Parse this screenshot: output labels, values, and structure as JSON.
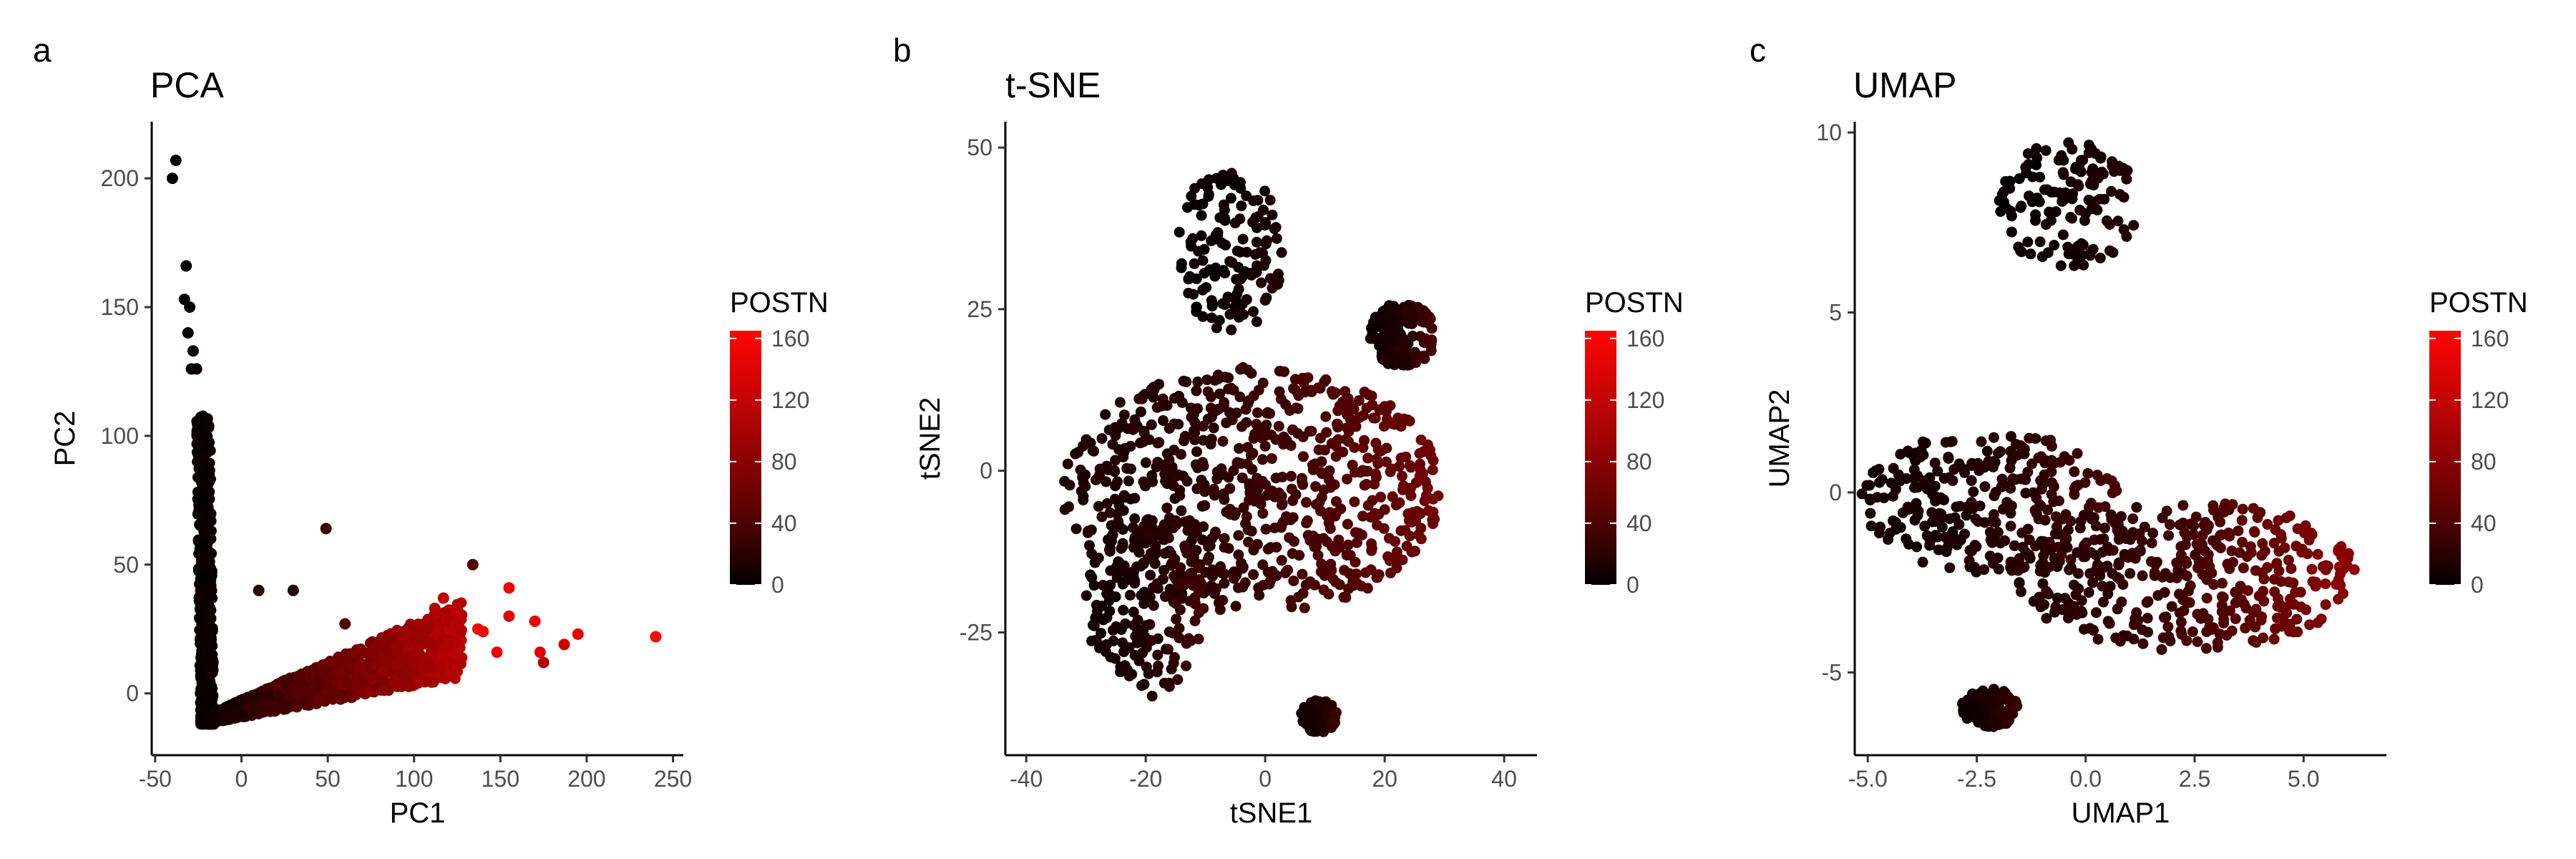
{
  "chart_data": [
    {
      "type": "scatter",
      "panel_label": "a",
      "title": "PCA",
      "xlabel": "PC1",
      "ylabel": "PC2",
      "xlim": [
        -52,
        256
      ],
      "ylim": [
        -24,
        222
      ],
      "xticks": [
        -50,
        0,
        50,
        100,
        150,
        200,
        250
      ],
      "xtick_labels": [
        "-50",
        "0",
        "50",
        "100",
        "150",
        "200",
        "250"
      ],
      "yticks": [
        0,
        50,
        100,
        150,
        200
      ],
      "ytick_labels": [
        "0",
        "50",
        "100",
        "150",
        "200"
      ],
      "grid": false,
      "legend_position": "right",
      "color_by": "POSTN",
      "highlighted_points": [
        {
          "x": -38,
          "y": 207,
          "value": 0
        },
        {
          "x": -40,
          "y": 200,
          "value": 0
        },
        {
          "x": -32,
          "y": 166,
          "value": 0
        },
        {
          "x": -33,
          "y": 153,
          "value": 0
        },
        {
          "x": -30,
          "y": 150,
          "value": 2
        },
        {
          "x": -31,
          "y": 140,
          "value": 2
        },
        {
          "x": -28,
          "y": 133,
          "value": 3
        },
        {
          "x": -29,
          "y": 126,
          "value": 3
        },
        {
          "x": -26,
          "y": 126,
          "value": 4
        },
        {
          "x": 49,
          "y": 64,
          "value": 30
        },
        {
          "x": 134,
          "y": 50,
          "value": 45
        },
        {
          "x": 155,
          "y": 41,
          "value": 150
        },
        {
          "x": 155,
          "y": 30,
          "value": 140
        },
        {
          "x": 170,
          "y": 28,
          "value": 150
        },
        {
          "x": 137,
          "y": 25,
          "value": 160
        },
        {
          "x": 140,
          "y": 24,
          "value": 155
        },
        {
          "x": 195,
          "y": 23,
          "value": 145
        },
        {
          "x": 187,
          "y": 19,
          "value": 130
        },
        {
          "x": 240,
          "y": 22,
          "value": 165
        },
        {
          "x": 175,
          "y": 12,
          "value": 110
        },
        {
          "x": 148,
          "y": 16,
          "value": 150
        },
        {
          "x": 173,
          "y": 16,
          "value": 140
        },
        {
          "x": 112,
          "y": 33,
          "value": 110
        },
        {
          "x": 117,
          "y": 37,
          "value": 120
        },
        {
          "x": 60,
          "y": 27,
          "value": 45
        },
        {
          "x": 10,
          "y": 40,
          "value": 20
        },
        {
          "x": 30,
          "y": 40,
          "value": 15
        }
      ]
    },
    {
      "type": "scatter",
      "panel_label": "b",
      "title": "t-SNE",
      "xlabel": "tSNE1",
      "ylabel": "tSNE2",
      "xlim": [
        -43.5,
        45.5
      ],
      "ylim": [
        -44,
        54
      ],
      "xticks": [
        -40,
        -20,
        0,
        20,
        40
      ],
      "xtick_labels": [
        "-40",
        "-20",
        "0",
        "20",
        "40"
      ],
      "yticks": [
        -25,
        0,
        25,
        50
      ],
      "ytick_labels": [
        "-25",
        "0",
        "25",
        "50"
      ],
      "grid": false,
      "legend_position": "right",
      "color_by": "POSTN",
      "clusters": [
        {
          "shape": "blob",
          "cx": -2,
          "cy": -3,
          "rx": 32,
          "ry": 19,
          "value": 38
        },
        {
          "shape": "blob",
          "cx": -6,
          "cy": 34,
          "rx": 9,
          "ry": 13,
          "value": 8
        },
        {
          "shape": "blob",
          "cx": 23,
          "cy": 21,
          "rx": 5.5,
          "ry": 5,
          "value": 22
        },
        {
          "shape": "blob",
          "cx": -20,
          "cy": -21,
          "rx": 10,
          "ry": 14,
          "value": 20
        },
        {
          "shape": "blob",
          "cx": 9,
          "cy": -38,
          "rx": 3,
          "ry": 2.5,
          "value": 18
        }
      ]
    },
    {
      "type": "scatter",
      "panel_label": "c",
      "title": "UMAP",
      "xlabel": "UMAP1",
      "ylabel": "UMAP2",
      "xlim": [
        -5.3,
        6.9
      ],
      "ylim": [
        -7.3,
        10.3
      ],
      "xticks": [
        -5.0,
        -2.5,
        0.0,
        2.5,
        5.0
      ],
      "xtick_labels": [
        "-5.0",
        "-2.5",
        "0.0",
        "2.5",
        "5.0"
      ],
      "yticks": [
        -5,
        0,
        5,
        10
      ],
      "ytick_labels": [
        "-5",
        "0",
        "5",
        "10"
      ],
      "grid": false,
      "legend_position": "right",
      "color_by": "POSTN",
      "clusters": [
        {
          "shape": "blob",
          "cx": -0.4,
          "cy": 8.0,
          "rx": 1.6,
          "ry": 1.8,
          "value": 10
        },
        {
          "shape": "blob",
          "cx": -2.2,
          "cy": -0.3,
          "rx": 3.0,
          "ry": 2.0,
          "value": 22
        },
        {
          "shape": "blob",
          "cx": 2.3,
          "cy": -2.3,
          "rx": 3.9,
          "ry": 2.1,
          "value": 48
        },
        {
          "shape": "blob",
          "cx": -2.2,
          "cy": -6.0,
          "rx": 0.65,
          "ry": 0.55,
          "value": 18
        }
      ]
    }
  ],
  "legend": {
    "title": "POSTN",
    "range": [
      0,
      165
    ],
    "ticks": [
      0,
      40,
      80,
      120,
      160
    ],
    "tick_labels": [
      "0",
      "40",
      "80",
      "120",
      "160"
    ],
    "low_color": "#000000",
    "high_color": "#ff0000"
  }
}
